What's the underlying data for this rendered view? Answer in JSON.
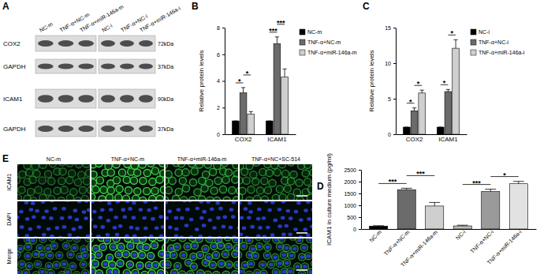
{
  "panel_a": {
    "panel": "A",
    "lanes": [
      [
        "NC-m",
        "TNF-α+NC-m",
        "TNF-α+miR-146a-m"
      ],
      [
        "NC-i",
        "TNF-α+NC-i",
        "TNF-α+miR-146a-i"
      ]
    ],
    "rows": [
      {
        "protein": "COX2",
        "size": "72kDa"
      },
      {
        "protein": "GAPDH",
        "size": "37kDa"
      },
      {
        "protein": "ICAM1",
        "size": "90kDa"
      },
      {
        "protein": "GAPDH",
        "size": "37kDa"
      }
    ]
  },
  "chart_data": [
    {
      "type": "bar",
      "panel": "B",
      "y_label": "Relative protein levels",
      "categories": [
        "COX2",
        "ICAM1"
      ],
      "series": [
        {
          "name": "NC-m",
          "color": "#000000",
          "values": [
            1,
            1
          ],
          "errors": [
            0,
            0
          ]
        },
        {
          "name": "TNF-α+NC-m",
          "color": "#6b6b6b",
          "values": [
            3.1,
            6.8
          ],
          "errors": [
            0.4,
            0.5
          ]
        },
        {
          "name": "TNF-α+miR-146a-m",
          "color": "#cfcfcf",
          "values": [
            1.5,
            4.3
          ],
          "errors": [
            0.2,
            0.6
          ]
        }
      ],
      "ylim": [
        0,
        8
      ],
      "yticks": [
        0,
        2,
        4,
        6,
        8
      ],
      "legend": "right",
      "significance": [
        {
          "category": 0,
          "from": 0,
          "to": 1,
          "label": "*"
        },
        {
          "category": 0,
          "from": 1,
          "to": 2,
          "label": "*"
        },
        {
          "category": 1,
          "from": 0,
          "to": 1,
          "label": "***"
        },
        {
          "category": 1,
          "from": 1,
          "to": 2,
          "label": "***"
        }
      ]
    },
    {
      "type": "bar",
      "panel": "C",
      "y_label": "Relative protein levels",
      "categories": [
        "COX2",
        "ICAM1"
      ],
      "series": [
        {
          "name": "NC-i",
          "color": "#000000",
          "values": [
            1,
            1
          ],
          "errors": [
            0,
            0
          ]
        },
        {
          "name": "TNF-α+NC-i",
          "color": "#6b6b6b",
          "values": [
            3.3,
            6.0
          ],
          "errors": [
            0.4,
            0.3
          ]
        },
        {
          "name": "TNF-α+miR-146a-i",
          "color": "#cfcfcf",
          "values": [
            5.8,
            12.1
          ],
          "errors": [
            0.4,
            1.2
          ]
        }
      ],
      "ylim": [
        0,
        15
      ],
      "yticks": [
        0,
        5,
        10,
        15
      ],
      "legend": "right",
      "significance": [
        {
          "category": 0,
          "from": 0,
          "to": 1,
          "label": "*"
        },
        {
          "category": 0,
          "from": 1,
          "to": 2,
          "label": "*"
        },
        {
          "category": 1,
          "from": 0,
          "to": 1,
          "label": "*"
        },
        {
          "category": 1,
          "from": 1,
          "to": 2,
          "label": "*"
        }
      ]
    },
    {
      "type": "bar",
      "panel": "D",
      "y_label": "ICAM1 in culture medium (pg/ml)",
      "categories": [
        "NC-m",
        "TNF-α+NC-m",
        "TNF-α+miR-146a-m",
        "NC-i",
        "TNF-α+NC-i",
        "TNF-α+miR-146a-i"
      ],
      "values": [
        120,
        1660,
        970,
        130,
        1580,
        1910
      ],
      "errors": [
        20,
        60,
        150,
        30,
        100,
        100
      ],
      "colors": [
        "#000000",
        "#6b6b6b",
        "#cfcfcf",
        "#bdbdbd",
        "#9a9a9a",
        "#e2e2e2"
      ],
      "ylim": [
        0,
        2500
      ],
      "yticks": [
        0,
        500,
        1000,
        1500,
        2000,
        2500
      ],
      "significance": [
        {
          "from": 0,
          "to": 1,
          "label": "***"
        },
        {
          "from": 1,
          "to": 2,
          "label": "***"
        },
        {
          "from": 3,
          "to": 4,
          "label": "***"
        },
        {
          "from": 4,
          "to": 5,
          "label": "*"
        }
      ]
    }
  ],
  "panel_e": {
    "panel": "E",
    "columns": [
      "NC-m",
      "TNF-α+NC-m",
      "TNF-α+miR-146a-m",
      "TNF-α+NC+SC-514"
    ],
    "rows": [
      "ICAM1",
      "DAPI",
      "Merge"
    ]
  }
}
